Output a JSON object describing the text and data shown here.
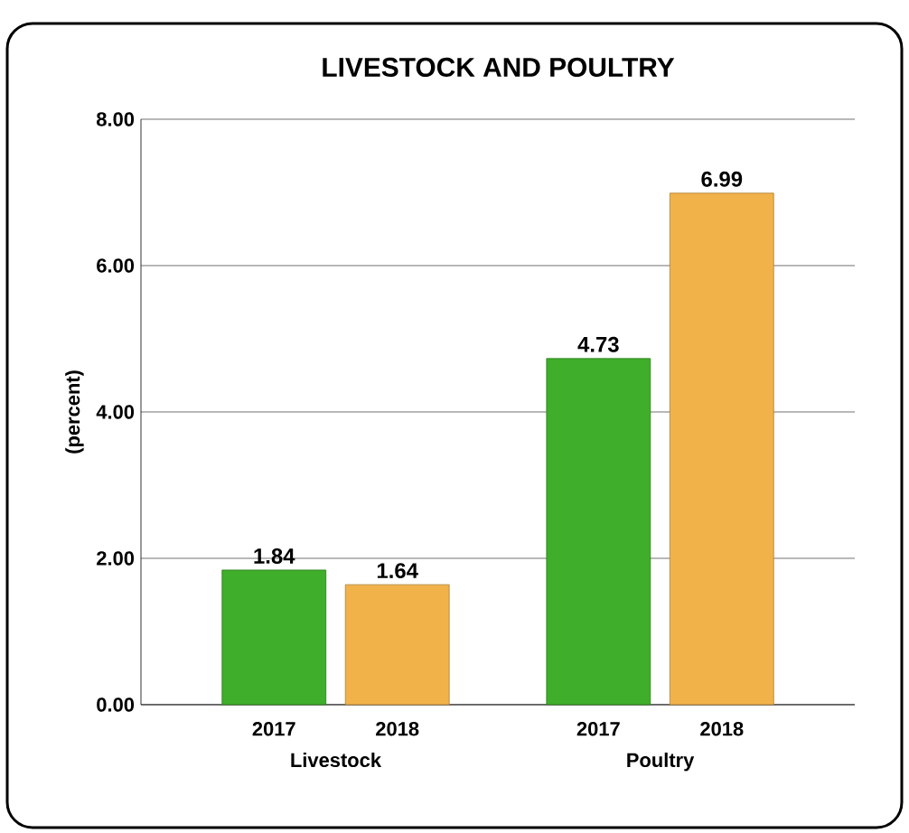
{
  "chart_data": {
    "type": "bar",
    "title": "LIVESTOCK AND POULTRY",
    "ylabel": "(percent)",
    "categories": [
      "Livestock",
      "Poultry"
    ],
    "series": [
      {
        "name": "2017",
        "color": "#3fae2a",
        "values": [
          1.84,
          4.73
        ]
      },
      {
        "name": "2018",
        "color": "#f2b24a",
        "values": [
          1.64,
          6.99
        ]
      }
    ],
    "ylim": [
      0,
      8
    ],
    "yticks": [
      {
        "value": 0,
        "label": "0.00"
      },
      {
        "value": 2,
        "label": "2.00"
      },
      {
        "value": 4,
        "label": "4.00"
      },
      {
        "value": 6,
        "label": "6.00"
      },
      {
        "value": 8,
        "label": "8.00"
      }
    ],
    "grid": "y",
    "data_labels": true
  }
}
